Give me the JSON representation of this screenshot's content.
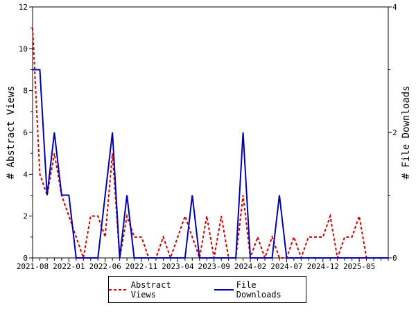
{
  "chart_data": {
    "type": "line",
    "y_left_label": "# Abstract Views",
    "y_right_label": "# File Downloads",
    "ylim_left": [
      0,
      12
    ],
    "ylim_right": [
      0,
      4
    ],
    "y_left_ticks": [
      "0",
      "2",
      "4",
      "6",
      "8",
      "10",
      "12"
    ],
    "y_right_ticks": [
      "0",
      "2",
      "4"
    ],
    "x_tick_labels": [
      "2021-08",
      "2022-01",
      "2022-06",
      "2022-11",
      "2023-04",
      "2023-09",
      "2024-02",
      "2024-07",
      "2024-12",
      "2025-05"
    ],
    "x_months": [
      "2021-08",
      "2021-09",
      "2021-10",
      "2021-11",
      "2021-12",
      "2022-01",
      "2022-02",
      "2022-03",
      "2022-04",
      "2022-05",
      "2022-06",
      "2022-07",
      "2022-08",
      "2022-09",
      "2022-10",
      "2022-11",
      "2022-12",
      "2023-01",
      "2023-02",
      "2023-03",
      "2023-04",
      "2023-05",
      "2023-06",
      "2023-07",
      "2023-08",
      "2023-09",
      "2023-10",
      "2023-11",
      "2023-12",
      "2024-01",
      "2024-02",
      "2024-03",
      "2024-04",
      "2024-05",
      "2024-06",
      "2024-07",
      "2024-08",
      "2024-09",
      "2024-10",
      "2024-11",
      "2024-12",
      "2025-01",
      "2025-02",
      "2025-03",
      "2025-04",
      "2025-05",
      "2025-06",
      "2025-07",
      "2025-08",
      "2025-09"
    ],
    "series": [
      {
        "name": "Abstract Views",
        "color": "#cc0000",
        "style": "dashed",
        "axis": "left",
        "values": [
          11,
          4,
          3,
          5,
          3,
          2,
          1,
          0,
          2,
          2,
          1,
          5,
          0,
          2,
          1,
          1,
          0,
          0,
          1,
          0,
          1,
          2,
          1,
          0,
          2,
          0,
          2,
          0,
          0,
          3,
          0,
          1,
          0,
          1,
          0,
          0,
          1,
          0,
          1,
          1,
          1,
          2,
          0,
          1,
          1,
          2,
          0,
          0,
          0,
          0
        ]
      },
      {
        "name": "File Downloads",
        "color": "#0000aa",
        "style": "solid",
        "axis": "right",
        "values": [
          3,
          3,
          1,
          2,
          1,
          1,
          0,
          0,
          0,
          0,
          1,
          2,
          0,
          1,
          0,
          0,
          0,
          0,
          0,
          0,
          0,
          0,
          1,
          0,
          0,
          0,
          0,
          0,
          0,
          2,
          0,
          0,
          0,
          0,
          1,
          0,
          0,
          0,
          0,
          0,
          0,
          0,
          0,
          0,
          0,
          0,
          0,
          0,
          0,
          0
        ]
      }
    ],
    "legend_position": "bottom",
    "grid": false
  }
}
